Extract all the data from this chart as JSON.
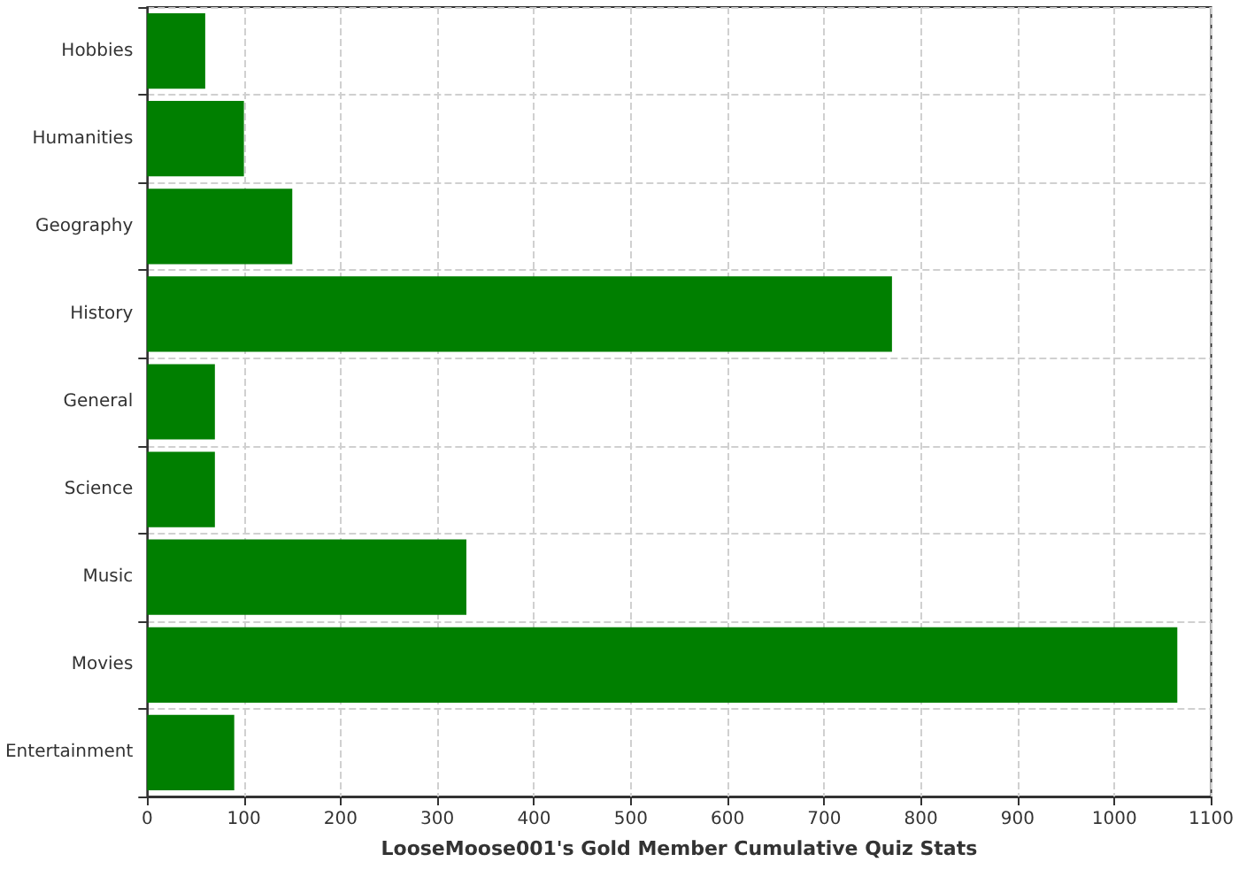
{
  "chart_data": {
    "type": "bar",
    "orientation": "horizontal",
    "xlabel": "LooseMoose001's Gold Member Cumulative Quiz Stats",
    "categories": [
      "Hobbies",
      "Humanities",
      "Geography",
      "History",
      "General",
      "Science",
      "Music",
      "Movies",
      "Entertainment"
    ],
    "values": [
      60,
      100,
      150,
      770,
      70,
      70,
      330,
      1065,
      90
    ],
    "color": "#007f00",
    "xlim": [
      0,
      1100
    ],
    "xticks": [
      0,
      100,
      200,
      300,
      400,
      500,
      600,
      700,
      800,
      900,
      1000,
      1100
    ],
    "grid": true
  }
}
